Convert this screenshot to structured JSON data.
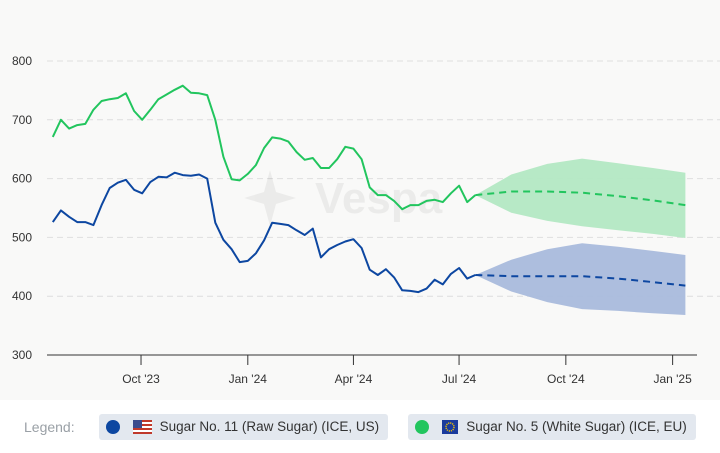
{
  "chart_data": {
    "type": "line",
    "title": "",
    "xlabel": "",
    "ylabel": "",
    "ylim": [
      300,
      800
    ],
    "yticks": [
      "300",
      "400",
      "500",
      "600",
      "700",
      "800"
    ],
    "xlim": [
      "2023-07-12",
      "2025-01-22"
    ],
    "xticks": [
      {
        "date": "2023-10-01",
        "label": "Oct '23"
      },
      {
        "date": "2024-01-01",
        "label": "Jan '24"
      },
      {
        "date": "2024-04-01",
        "label": "Apr '24"
      },
      {
        "date": "2024-07-01",
        "label": "Jul '24"
      },
      {
        "date": "2024-10-01",
        "label": "Oct '24"
      },
      {
        "date": "2025-01-01",
        "label": "Jan '25"
      }
    ],
    "grid": "horizontal dashed",
    "legend_placement": "bottom",
    "watermark": "Vespa",
    "history_dates": [
      "2023-07-17",
      "2023-07-24",
      "2023-07-31",
      "2023-08-07",
      "2023-08-14",
      "2023-08-21",
      "2023-08-28",
      "2023-09-04",
      "2023-09-11",
      "2023-09-18",
      "2023-09-25",
      "2023-10-02",
      "2023-10-09",
      "2023-10-16",
      "2023-10-23",
      "2023-10-30",
      "2023-11-06",
      "2023-11-13",
      "2023-11-20",
      "2023-11-27",
      "2023-12-04",
      "2023-12-11",
      "2023-12-18",
      "2023-12-25",
      "2024-01-01",
      "2024-01-08",
      "2024-01-15",
      "2024-01-22",
      "2024-01-29",
      "2024-02-05",
      "2024-02-12",
      "2024-02-19",
      "2024-02-26",
      "2024-03-04",
      "2024-03-11",
      "2024-03-18",
      "2024-03-25",
      "2024-04-01",
      "2024-04-08",
      "2024-04-15",
      "2024-04-22",
      "2024-04-29",
      "2024-05-06",
      "2024-05-13",
      "2024-05-20",
      "2024-05-27",
      "2024-06-03",
      "2024-06-10",
      "2024-06-17",
      "2024-06-24",
      "2024-07-01",
      "2024-07-08",
      "2024-07-15"
    ],
    "forecast_dates": [
      "2024-07-15",
      "2024-08-15",
      "2024-09-15",
      "2024-10-15",
      "2024-11-15",
      "2024-12-15",
      "2025-01-12"
    ],
    "series": [
      {
        "name": "Sugar No. 11 (Raw Sugar) (ICE, US)",
        "color": "#0d47a1",
        "band_color": "#a9bbdc",
        "values": [
          526,
          546,
          535,
          526,
          526,
          521,
          555,
          584,
          593,
          598,
          581,
          575,
          594,
          603,
          602,
          610,
          606,
          605,
          607,
          600,
          525,
          496,
          480,
          458,
          460,
          473,
          495,
          525,
          523,
          521,
          512,
          504,
          515,
          466,
          480,
          487,
          493,
          497,
          482,
          445,
          436,
          446,
          432,
          410,
          409,
          407,
          413,
          428,
          420,
          438,
          448,
          430,
          436
        ],
        "forecast": [
          436,
          434,
          434,
          434,
          430,
          424,
          418
        ],
        "forecast_upper": [
          436,
          462,
          480,
          490,
          484,
          477,
          470
        ],
        "forecast_lower": [
          436,
          408,
          390,
          378,
          375,
          371,
          368
        ]
      },
      {
        "name": "Sugar No. 5 (White Sugar) (ICE, EU)",
        "color": "#22c55e",
        "band_color": "#b3e8c3",
        "values": [
          671,
          700,
          685,
          691,
          693,
          717,
          732,
          735,
          737,
          745,
          715,
          700,
          717,
          735,
          743,
          751,
          758,
          746,
          745,
          742,
          700,
          637,
          599,
          597,
          608,
          623,
          652,
          670,
          668,
          663,
          645,
          632,
          635,
          618,
          618,
          633,
          654,
          651,
          633,
          585,
          572,
          572,
          562,
          548,
          555,
          555,
          562,
          564,
          560,
          575,
          588,
          560,
          572
        ],
        "forecast": [
          572,
          578,
          578,
          576,
          570,
          563,
          555
        ],
        "forecast_upper": [
          572,
          607,
          625,
          634,
          626,
          618,
          610
        ],
        "forecast_lower": [
          572,
          542,
          528,
          519,
          512,
          506,
          499
        ]
      }
    ]
  },
  "legend": {
    "title": "Legend:",
    "items": [
      {
        "label": "Sugar No. 11 (Raw Sugar) (ICE, US)",
        "color": "#0d47a1",
        "flag": "us-flag-icon"
      },
      {
        "label": "Sugar No. 5 (White Sugar) (ICE, EU)",
        "color": "#22c55e",
        "flag": "eu-flag-icon"
      }
    ]
  }
}
